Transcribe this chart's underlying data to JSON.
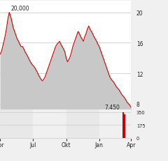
{
  "main_price_data": [
    14.5,
    14.8,
    15.5,
    16.2,
    17.0,
    18.0,
    19.2,
    20.0,
    19.5,
    18.8,
    18.0,
    17.5,
    17.0,
    16.5,
    16.2,
    15.8,
    15.5,
    15.5,
    15.2,
    14.8,
    14.5,
    14.2,
    13.8,
    13.5,
    13.2,
    13.0,
    12.8,
    12.5,
    12.2,
    11.8,
    11.5,
    11.2,
    11.0,
    11.2,
    11.5,
    12.0,
    12.5,
    13.0,
    13.5,
    14.0,
    14.5,
    15.0,
    15.5,
    15.8,
    16.0,
    16.2,
    15.8,
    15.5,
    15.2,
    14.8,
    14.0,
    13.5,
    13.8,
    14.2,
    14.8,
    15.5,
    16.0,
    16.5,
    17.0,
    17.5,
    17.2,
    16.8,
    16.5,
    16.2,
    16.8,
    17.2,
    17.8,
    18.2,
    17.8,
    17.5,
    17.2,
    16.8,
    16.5,
    16.2,
    15.8,
    15.5,
    15.0,
    14.5,
    14.0,
    13.5,
    13.0,
    12.5,
    12.0,
    11.5,
    11.2,
    11.0,
    10.8,
    10.5,
    10.2,
    10.0,
    9.8,
    9.5,
    9.2,
    9.0,
    8.8,
    8.5,
    8.2,
    8.0,
    7.8,
    7.5
  ],
  "volume_data": [
    3,
    3,
    3,
    3,
    3,
    3,
    3,
    3,
    3,
    3,
    3,
    3,
    3,
    3,
    3,
    3,
    3,
    3,
    3,
    3,
    3,
    3,
    3,
    3,
    3,
    3,
    3,
    3,
    3,
    3,
    3,
    3,
    3,
    3,
    3,
    3,
    3,
    3,
    3,
    3,
    3,
    3,
    3,
    3,
    3,
    3,
    3,
    3,
    3,
    3,
    3,
    3,
    3,
    3,
    3,
    3,
    3,
    3,
    3,
    3,
    3,
    3,
    3,
    3,
    3,
    3,
    3,
    3,
    3,
    3,
    3,
    3,
    3,
    3,
    3,
    3,
    3,
    3,
    3,
    3,
    3,
    3,
    3,
    3,
    3,
    3,
    3,
    3,
    3,
    3,
    3,
    3,
    3,
    350,
    320,
    3,
    3,
    3,
    3,
    3
  ],
  "x_tick_positions": [
    0,
    25,
    50,
    75,
    99
  ],
  "x_tick_labels": [
    "Apr",
    "Jul",
    "Okt",
    "Jan",
    "Apr"
  ],
  "y_ticks_main": [
    8,
    12,
    16,
    20
  ],
  "y_ticks_vol": [
    0,
    175,
    350
  ],
  "price_label": "20,000",
  "price_label_xi": 7,
  "price_label_yi": 20.0,
  "current_label": "7,450",
  "current_label_xi": 79,
  "current_label_yi": 7.55,
  "line_color": "#cc0000",
  "fill_color": "#c8c8c8",
  "chart_bg": "#ffffff",
  "outer_bg": "#f0f0f0",
  "grid_color": "#cccccc",
  "vol_color": "#cc0000",
  "band_colors": [
    "#e8e8e8",
    "#f0f0f0",
    "#e8e8e8",
    "#f0f0f0"
  ],
  "ylim_main": [
    7.2,
    21.5
  ],
  "ylim_vol": [
    -5,
    380
  ],
  "n_points": 100
}
